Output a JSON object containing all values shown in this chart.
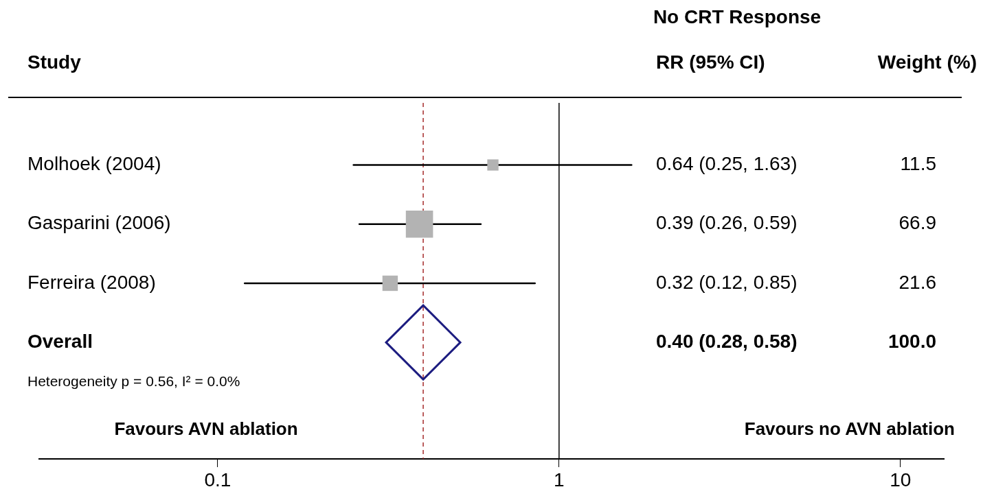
{
  "chart_data": {
    "type": "scatter",
    "orientation": "horizontal",
    "title": "No CRT Response",
    "ylabel": "Study",
    "categories": [
      "Molhoek (2004)",
      "Gasparini (2006)",
      "Ferreira (2008)",
      "Overall"
    ],
    "series": [
      {
        "type": "bubble",
        "color": "#b3b3b3",
        "marker": "square",
        "values": [
          0.64,
          0.39,
          0.32,
          null
        ],
        "errors": [
          [
            0.25,
            1.63
          ],
          [
            0.26,
            0.59
          ],
          [
            0.12,
            0.85
          ],
          null
        ],
        "sizes": [
          0.17,
          1,
          0.32,
          null
        ]
      },
      {
        "color": "#1c1c80",
        "marker": "diamond",
        "values": [
          null,
          null,
          null,
          0.4
        ]
      }
    ],
    "log": "x",
    "xlim": [
      0.03,
      13.4
    ],
    "xticks": [
      0.1,
      1,
      10
    ],
    "grid": false,
    "legend": false,
    "ref_lines": [
      {
        "axis": "x",
        "value": 1,
        "color": "#000000",
        "line_style": "solid"
      },
      {
        "axis": "x",
        "value": 0.4,
        "color": "#a52a2a",
        "line_style": "dashed"
      }
    ],
    "annotations": [
      "RR (95% CI)",
      "Weight (%)",
      "0.64 (0.25, 1.63)",
      "11.5",
      "0.39 (0.26, 0.59)",
      "66.9",
      "0.32 (0.12, 0.85)",
      "21.6",
      "0.40 (0.28, 0.58)",
      "100.0",
      "Heterogeneity p = 0.56, I² = 0.0%",
      "Favours AVN ablation",
      "Favours no AVN ablation"
    ]
  }
}
